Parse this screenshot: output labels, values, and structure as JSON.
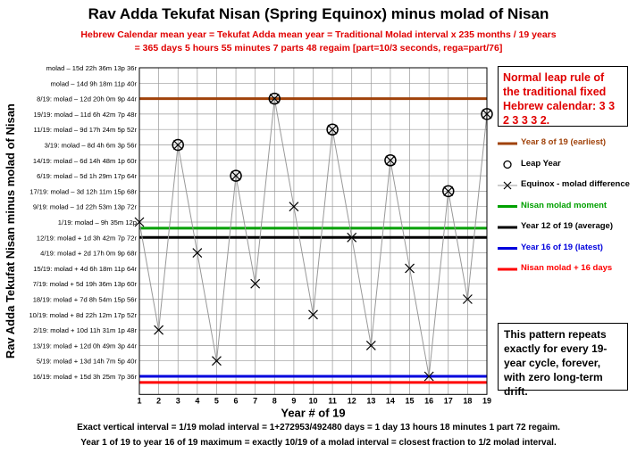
{
  "header": {
    "title": "Rav Adda Tekufat Nisan (Spring Equinox) minus molad of Nisan",
    "subtitle_line1": "Hebrew Calendar mean year = Tekufat Adda mean year = Traditional Molad interval x 235 months / 19 years",
    "subtitle_line2": "= 365 days 5 hours 55 minutes 7 parts 48 regaim [part=10/3 seconds, rega=part/76]"
  },
  "notes": {
    "leap_rule": "Normal leap rule of the traditional fixed Hebrew calendar: 3 3 2 3 3 3 2.",
    "pattern": "This pattern repeats exactly for every 19-year cycle, forever, with zero long-term drift."
  },
  "legend": [
    {
      "label": "Year 8 of 19 (earliest)",
      "color": "#a0420a",
      "kind": "line"
    },
    {
      "label": "Leap Year",
      "color": "#000000",
      "kind": "circle"
    },
    {
      "label": "Equinox - molad difference",
      "color": "#000000",
      "kind": "cross"
    },
    {
      "label": "Nisan molad moment",
      "color": "#00a000",
      "kind": "line"
    },
    {
      "label": "Year 12 of 19 (average)",
      "color": "#000000",
      "kind": "line"
    },
    {
      "label": "Year 16 of 19 (latest)",
      "color": "#0000dd",
      "kind": "line"
    },
    {
      "label": "Nisan molad + 16 days",
      "color": "#ff0000",
      "kind": "line"
    }
  ],
  "footer": {
    "line1": "Exact vertical interval = 1/19 molad interval = 1+272953/492480 days = 1 day 13 hours 18 minutes 1 part 72 regaim.",
    "line2": "Year 1 of 19 to year 16 of 19 maximum = exactly 10/19 of a molad interval = closest fraction to 1/2 molad interval."
  },
  "colors": {
    "series_line": "#999999",
    "grid": "#999999"
  },
  "chart_data": {
    "type": "scatter",
    "xlabel": "Year # of 19",
    "ylabel": "Rav Adda Tekufat Nisan minus molad of Nisan",
    "x": [
      1,
      2,
      3,
      4,
      5,
      6,
      7,
      8,
      9,
      10,
      11,
      12,
      13,
      14,
      15,
      16,
      17,
      18,
      19
    ],
    "x_tick_labels": [
      "1",
      "2",
      "3",
      "4",
      "5",
      "6",
      "7",
      "8",
      "9",
      "10",
      "11",
      "12",
      "13",
      "14",
      "15",
      "16",
      "17",
      "18",
      "19"
    ],
    "y_tick_labels": [
      "molad – 15d 22h 36m 13p 36r",
      "molad – 14d 9h 18m 11p 40r",
      "8/19: molad – 12d 20h 0m 9p 44r",
      "19/19: molad – 11d 6h 42m 7p 48r",
      "11/19: molad – 9d 17h 24m 5p 52r",
      "3/19: molad – 8d 4h 6m 3p 56r",
      "14/19: molad – 6d 14h 48m 1p 60r",
      "6/19: molad – 5d 1h 29m 17p 64r",
      "17/19: molad – 3d 12h 11m 15p 68r",
      "9/19: molad – 1d 22h 53m 13p 72r",
      "1/19: molad – 9h 35m 12p",
      "12/19: molad + 1d 3h 42m 7p 72r",
      "4/19: molad + 2d 17h 0m 9p 68r",
      "15/19: molad + 4d 6h 18m 11p 64r",
      "7/19: molad + 5d 19h 36m 13p 60r",
      "18/19: molad + 7d 8h 54m 15p 56r",
      "10/19: molad + 8d 22h 12m 17p 52r",
      "2/19: molad + 10d 11h 31m 1p 48r",
      "13/19: molad + 12d 0h 49m 3p 44r",
      "5/19: molad + 13d 14h 7m 5p 40r",
      "16/19: molad + 15d 3h 25m 7p 36r"
    ],
    "series": [
      {
        "name": "Equinox - molad difference",
        "y_rank": [
          10,
          17,
          5,
          12,
          19,
          7,
          14,
          2,
          9,
          16,
          4,
          11,
          18,
          6,
          13,
          20,
          8,
          15,
          3
        ],
        "leap_years": [
          3,
          6,
          8,
          11,
          14,
          17,
          19
        ]
      }
    ],
    "reference_lines": [
      {
        "name": "Year 8 of 19 (earliest)",
        "y_rank": 2,
        "color": "#a0420a"
      },
      {
        "name": "Nisan molad moment",
        "y_rank": 10.4,
        "color": "#00a000"
      },
      {
        "name": "Year 12 of 19 (average)",
        "y_rank": 11,
        "color": "#000000"
      },
      {
        "name": "Year 16 of 19 (latest)",
        "y_rank": 20,
        "color": "#0000dd"
      },
      {
        "name": "Nisan molad + 16 days",
        "y_rank": 20.4,
        "color": "#ff0000"
      }
    ],
    "grid": true
  }
}
